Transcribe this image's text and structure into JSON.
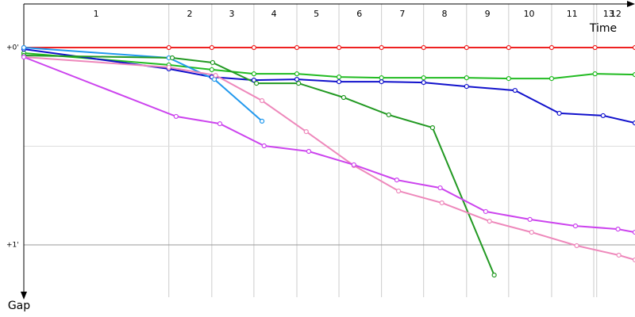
{
  "chart_data": {
    "type": "line",
    "x_label": "Time",
    "y_label": "Gap",
    "xlim": [
      0,
      14.37
    ],
    "ylim": [
      -0.221,
      1.265
    ],
    "xticks": [
      {
        "value": 1.7,
        "label": "1"
      },
      {
        "value": 3.9,
        "label": "2"
      },
      {
        "value": 4.89,
        "label": "3"
      },
      {
        "value": 5.88,
        "label": "4"
      },
      {
        "value": 6.88,
        "label": "5"
      },
      {
        "value": 7.89,
        "label": "6"
      },
      {
        "value": 8.9,
        "label": "7"
      },
      {
        "value": 9.89,
        "label": "8"
      },
      {
        "value": 10.9,
        "label": "9"
      },
      {
        "value": 11.88,
        "label": "10"
      },
      {
        "value": 12.89,
        "label": "11"
      },
      {
        "value": 13.75,
        "label": "13"
      },
      {
        "value": 13.92,
        "label": "12"
      }
    ],
    "xgrid": [
      3.41,
      4.42,
      5.41,
      6.42,
      7.41,
      8.41,
      9.4,
      10.41,
      11.4,
      12.41,
      13.4,
      13.47
    ],
    "yticks": [
      {
        "value": 0,
        "label": "+0'"
      },
      {
        "value": 0.5,
        "label": null
      },
      {
        "value": 1,
        "label": "+1'"
      }
    ],
    "grid": true,
    "series": [
      {
        "color": "#ee2222",
        "x": [
          0,
          3.41,
          4.42,
          5.41,
          6.42,
          7.41,
          8.41,
          9.4,
          10.41,
          11.4,
          12.41,
          13.43,
          14.37
        ],
        "values": [
          0,
          0,
          0,
          0,
          0,
          0,
          0,
          0,
          0,
          0,
          0,
          0,
          0
        ]
      },
      {
        "color": "#22bb22",
        "x": [
          0,
          3.41,
          4.42,
          5.41,
          6.42,
          7.41,
          8.41,
          9.4,
          10.41,
          11.4,
          12.41,
          13.43,
          14.37
        ],
        "values": [
          0.028,
          0.088,
          0.112,
          0.133,
          0.133,
          0.149,
          0.153,
          0.153,
          0.153,
          0.157,
          0.157,
          0.133,
          0.137
        ]
      },
      {
        "color": "#1111cc",
        "x": [
          0,
          3.41,
          4.42,
          5.41,
          6.42,
          7.41,
          8.41,
          9.4,
          10.41,
          11.55,
          12.59,
          13.62,
          14.37
        ],
        "values": [
          0.008,
          0.108,
          0.149,
          0.165,
          0.161,
          0.173,
          0.173,
          0.177,
          0.197,
          0.217,
          0.333,
          0.345,
          0.382
        ]
      },
      {
        "color": "#2299ee",
        "x": [
          0,
          3.41,
          4.48,
          5.6
        ],
        "values": [
          0,
          0.052,
          0.161,
          0.373
        ]
      },
      {
        "color": "#229922",
        "x": [
          0,
          3.49,
          4.44,
          5.47,
          6.46,
          7.52,
          8.58,
          9.61,
          11.06
        ],
        "values": [
          0.04,
          0.052,
          0.076,
          0.181,
          0.181,
          0.253,
          0.341,
          0.406,
          1.153
        ]
      },
      {
        "color": "#ee88bb",
        "x": [
          0,
          3.41,
          4.51,
          5.6,
          6.64,
          7.76,
          8.81,
          9.83,
          10.95,
          11.94,
          13.0,
          13.99,
          14.37
        ],
        "values": [
          0.048,
          0.1,
          0.141,
          0.269,
          0.426,
          0.598,
          0.727,
          0.787,
          0.88,
          0.936,
          1.004,
          1.052,
          1.076
        ]
      },
      {
        "color": "#cc44ee",
        "x": [
          0,
          3.58,
          4.61,
          5.65,
          6.7,
          7.76,
          8.77,
          9.79,
          10.86,
          11.9,
          12.97,
          13.97,
          14.37
        ],
        "values": [
          0.048,
          0.349,
          0.386,
          0.498,
          0.526,
          0.594,
          0.671,
          0.711,
          0.831,
          0.871,
          0.904,
          0.92,
          0.936
        ]
      }
    ]
  }
}
